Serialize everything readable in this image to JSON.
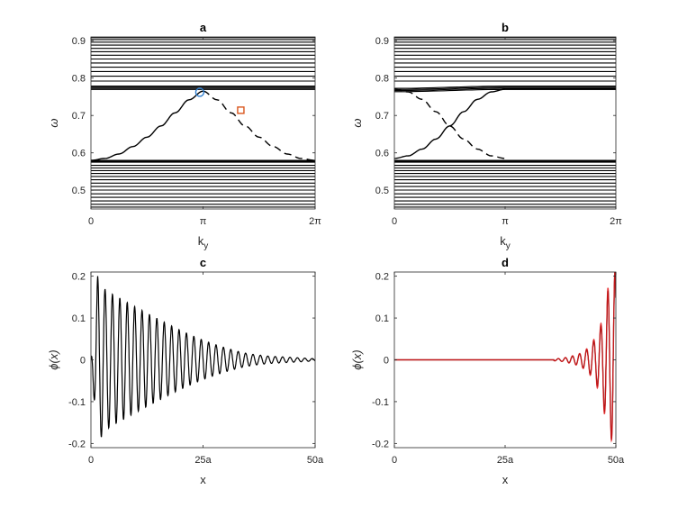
{
  "chart_data": [
    {
      "panel": "a",
      "type": "line",
      "title": "a",
      "xlabel": "k",
      "xlabel_sub": "y",
      "ylabel": "ω",
      "xlim": [
        0,
        6.2832
      ],
      "ylim": [
        0.45,
        0.91
      ],
      "xticks": [
        0,
        3.1416,
        6.2832
      ],
      "xtick_labels": [
        "0",
        "π",
        "2π"
      ],
      "yticks": [
        0.5,
        0.6,
        0.7,
        0.8,
        0.9
      ],
      "ytick_labels": [
        "0.5",
        "0.6",
        "0.7",
        "0.8",
        "0.9"
      ],
      "grid": false,
      "bands": {
        "upper": [
          0.7695,
          0.7725,
          0.7755,
          0.7785,
          0.792,
          0.805,
          0.8175,
          0.829,
          0.8405,
          0.851,
          0.861,
          0.8705,
          0.8795,
          0.888,
          0.896,
          0.903,
          0.908
        ],
        "lower": [
          0.455,
          0.4625,
          0.4715,
          0.481,
          0.4905,
          0.5005,
          0.51,
          0.519,
          0.528,
          0.537,
          0.545,
          0.5525,
          0.5595,
          0.5665,
          0.575,
          0.5775,
          0.58
        ]
      },
      "edge_state_solid": {
        "x": [
          0.0,
          0.3927,
          0.7854,
          1.1781,
          1.5708,
          1.9635,
          2.3562,
          2.7489,
          3.1416
        ],
        "y": [
          0.58,
          0.585,
          0.597,
          0.617,
          0.642,
          0.672,
          0.707,
          0.742,
          0.765
        ]
      },
      "edge_state_dashed": {
        "x": [
          3.1416,
          3.5343,
          3.927,
          4.3197,
          4.7124,
          5.1051,
          5.4978,
          5.8905,
          6.2832
        ],
        "y": [
          0.765,
          0.742,
          0.707,
          0.672,
          0.642,
          0.617,
          0.597,
          0.585,
          0.58
        ]
      },
      "markers": [
        {
          "shape": "circle",
          "x": 3.05,
          "y": 0.762,
          "color": "#2f7fd0"
        },
        {
          "shape": "square",
          "x": 4.2,
          "y": 0.714,
          "color": "#d9541a"
        }
      ]
    },
    {
      "panel": "b",
      "type": "line",
      "title": "b",
      "xlabel": "k",
      "xlabel_sub": "y",
      "ylabel": "ω",
      "xlim": [
        0,
        6.2832
      ],
      "ylim": [
        0.45,
        0.91
      ],
      "xticks": [
        0,
        3.1416,
        6.2832
      ],
      "xtick_labels": [
        "0",
        "π",
        "2π"
      ],
      "yticks": [
        0.5,
        0.6,
        0.7,
        0.8,
        0.9
      ],
      "ytick_labels": [
        "0.5",
        "0.6",
        "0.7",
        "0.8",
        "0.9"
      ],
      "grid": false,
      "bands": {
        "upper": [
          0.7695,
          0.7725,
          0.7755,
          0.7785,
          0.792,
          0.805,
          0.8175,
          0.829,
          0.8405,
          0.851,
          0.861,
          0.8705,
          0.8795,
          0.888,
          0.896,
          0.903,
          0.908
        ],
        "lower": [
          0.455,
          0.4625,
          0.4715,
          0.481,
          0.4905,
          0.5005,
          0.51,
          0.519,
          0.528,
          0.537,
          0.545,
          0.5525,
          0.5595,
          0.5665,
          0.575,
          0.5775,
          0.58
        ]
      },
      "edge_state_solid": {
        "x": [
          0.0,
          0.3927,
          0.7854,
          1.1781,
          1.5708,
          1.9635,
          2.3562,
          2.7489,
          3.1416,
          6.2832
        ],
        "y": [
          0.585,
          0.592,
          0.61,
          0.637,
          0.672,
          0.71,
          0.743,
          0.763,
          0.77,
          0.77
        ]
      },
      "edge_state_dashed": {
        "x": [
          0.0,
          0.3927,
          0.7854,
          1.1781,
          1.5708,
          1.9635,
          2.3562,
          2.7489,
          3.1416
        ],
        "y": [
          0.77,
          0.763,
          0.743,
          0.71,
          0.672,
          0.637,
          0.61,
          0.592,
          0.585
        ]
      }
    },
    {
      "panel": "c",
      "type": "line",
      "title": "c",
      "xlabel": "x",
      "ylabel": "ϕ(x)",
      "xlim": [
        0,
        50
      ],
      "ylim": [
        -0.21,
        0.21
      ],
      "xticks": [
        0,
        25,
        50
      ],
      "xtick_labels": [
        "0",
        "25a",
        "50a"
      ],
      "yticks": [
        -0.2,
        -0.1,
        0,
        0.1,
        0.2
      ],
      "ytick_labels": [
        "-0.2",
        "-0.1",
        "0",
        "0.1",
        "0.2"
      ],
      "grid": false,
      "series": [
        {
          "color": "#000000",
          "envelope_peaks": {
            "x": [
              1.5,
              3.2,
              4.8,
              6.5,
              8.1,
              9.8,
              11.4,
              13.1,
              14.7,
              16.4,
              18.0,
              19.7,
              21.3,
              23.0,
              24.6,
              26.3,
              27.9,
              29.6,
              31.2,
              32.9,
              34.5,
              36.2,
              37.8,
              39.5,
              41.1,
              42.8,
              44.4,
              46.1,
              47.7,
              49.4
            ],
            "y": [
              0.2,
              0.168,
              0.157,
              0.147,
              0.137,
              0.127,
              0.118,
              0.108,
              0.099,
              0.09,
              0.081,
              0.072,
              0.064,
              0.056,
              0.049,
              0.042,
              0.036,
              0.03,
              0.025,
              0.02,
              0.016,
              0.013,
              0.011,
              0.009,
              0.008,
              0.007,
              0.006,
              0.005,
              0.004,
              0.003
            ]
          }
        }
      ]
    },
    {
      "panel": "d",
      "type": "line",
      "title": "d",
      "xlabel": "x",
      "ylabel": "ϕ(x)",
      "xlim": [
        0,
        50
      ],
      "ylim": [
        -0.21,
        0.21
      ],
      "xticks": [
        0,
        25,
        50
      ],
      "xtick_labels": [
        "0",
        "25a",
        "50a"
      ],
      "yticks": [
        -0.2,
        -0.1,
        0,
        0.1,
        0.2
      ],
      "ytick_labels": [
        "-0.2",
        "-0.1",
        "0",
        "0.1",
        "0.2"
      ],
      "grid": false,
      "series": [
        {
          "color": "#000000",
          "envelope_peaks": {
            "x": [
              36.0,
              38.0,
              40.0,
              41.8,
              43.5,
              45.0,
              46.6,
              48.2,
              49.7
            ],
            "y": [
              0.002,
              0.004,
              0.008,
              0.014,
              0.025,
              0.045,
              0.08,
              0.165,
              -0.21
            ]
          }
        },
        {
          "color": "#e41a1c",
          "envelope_peaks": {
            "x": [
              36.0,
              38.0,
              40.0,
              41.8,
              43.5,
              45.0,
              46.6,
              48.2,
              49.7
            ],
            "y": [
              0.002,
              0.004,
              0.009,
              0.015,
              0.027,
              0.048,
              0.086,
              0.172,
              -0.21
            ]
          }
        }
      ]
    }
  ]
}
